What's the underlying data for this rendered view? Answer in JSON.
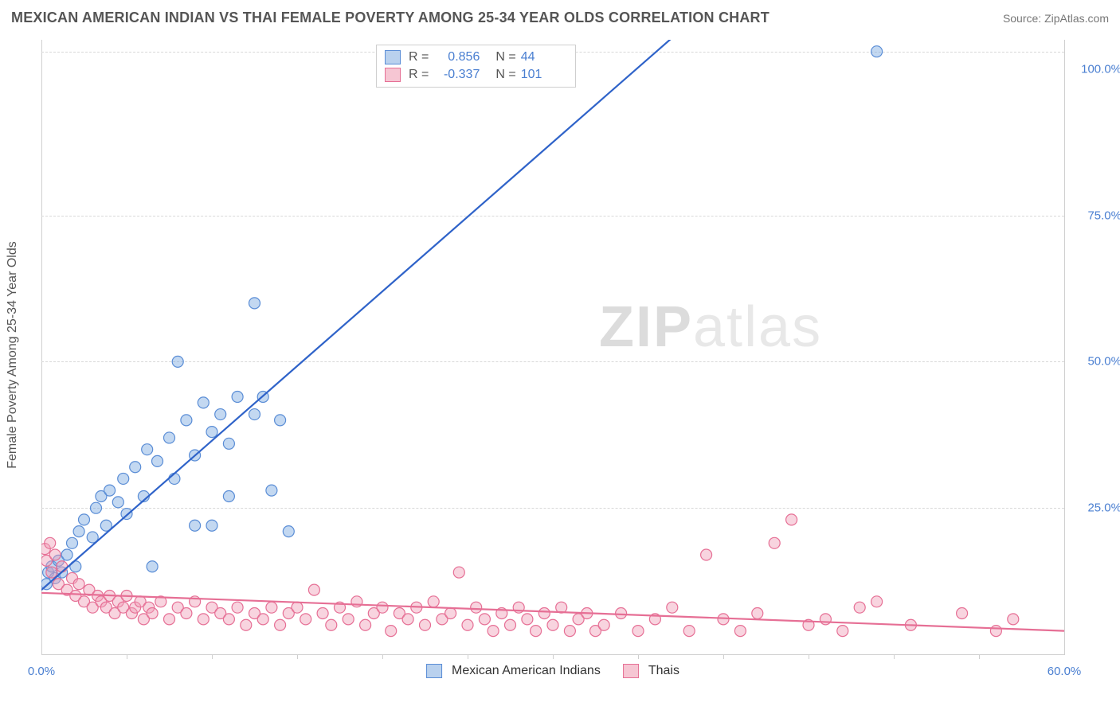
{
  "title": "MEXICAN AMERICAN INDIAN VS THAI FEMALE POVERTY AMONG 25-34 YEAR OLDS CORRELATION CHART",
  "source": "Source: ZipAtlas.com",
  "watermark_zip": "ZIP",
  "watermark_atlas": "atlas",
  "chart": {
    "type": "scatter",
    "xlim": [
      0,
      60
    ],
    "ylim": [
      0,
      105
    ],
    "x_ticks": [
      0,
      60
    ],
    "x_tick_labels": [
      "0.0%",
      "60.0%"
    ],
    "x_minor_ticks": [
      5,
      10,
      15,
      20,
      25,
      30,
      35,
      40,
      45,
      50,
      55
    ],
    "y_ticks": [
      25,
      50,
      75,
      100
    ],
    "y_tick_labels": [
      "25.0%",
      "50.0%",
      "75.0%",
      "100.0%"
    ],
    "y_grid": [
      25,
      50,
      75,
      103
    ],
    "y_label": "Female Poverty Among 25-34 Year Olds",
    "background_color": "#ffffff",
    "grid_color": "#d8d8d8",
    "axis_color": "#cfcfcf",
    "tick_label_color": "#4a7fd1",
    "marker_radius": 7,
    "line_width": 2.2,
    "legend_top": {
      "rows": [
        {
          "r_label": "R =",
          "r_value": "0.856",
          "n_label": "N =",
          "n_value": "44",
          "swatch_fill": "#b9d1ee",
          "swatch_stroke": "#5a8dd6"
        },
        {
          "r_label": "R =",
          "r_value": "-0.337",
          "n_label": "N =",
          "n_value": "101",
          "swatch_fill": "#f6c6d3",
          "swatch_stroke": "#e66f95"
        }
      ]
    },
    "legend_bottom": [
      {
        "label": "Mexican American Indians",
        "swatch_fill": "#b9d1ee",
        "swatch_stroke": "#5a8dd6"
      },
      {
        "label": "Thais",
        "swatch_fill": "#f6c6d3",
        "swatch_stroke": "#e66f95"
      }
    ],
    "series": [
      {
        "name": "Mexican American Indians",
        "marker_fill": "rgba(122,168,224,0.45)",
        "marker_stroke": "#5a8dd6",
        "line_color": "#2f63c9",
        "trend": {
          "x1": 0,
          "y1": 11,
          "x2": 40,
          "y2": 113
        },
        "points": [
          [
            0.3,
            12
          ],
          [
            0.4,
            14
          ],
          [
            0.6,
            15
          ],
          [
            0.8,
            13
          ],
          [
            1.0,
            16
          ],
          [
            1.2,
            14
          ],
          [
            1.5,
            17
          ],
          [
            1.8,
            19
          ],
          [
            2.0,
            15
          ],
          [
            2.2,
            21
          ],
          [
            2.5,
            23
          ],
          [
            3.0,
            20
          ],
          [
            3.2,
            25
          ],
          [
            3.5,
            27
          ],
          [
            3.8,
            22
          ],
          [
            4.0,
            28
          ],
          [
            4.5,
            26
          ],
          [
            4.8,
            30
          ],
          [
            5.0,
            24
          ],
          [
            5.5,
            32
          ],
          [
            6.0,
            27
          ],
          [
            6.2,
            35
          ],
          [
            6.8,
            33
          ],
          [
            7.5,
            37
          ],
          [
            7.8,
            30
          ],
          [
            8.5,
            40
          ],
          [
            9.0,
            34
          ],
          [
            9.5,
            43
          ],
          [
            10.0,
            38
          ],
          [
            10.5,
            41
          ],
          [
            11.0,
            36
          ],
          [
            11.5,
            44
          ],
          [
            12.5,
            41
          ],
          [
            13.0,
            44
          ],
          [
            14.0,
            40
          ],
          [
            8.0,
            50
          ],
          [
            12.5,
            60
          ],
          [
            11.0,
            27
          ],
          [
            10.0,
            22
          ],
          [
            6.5,
            15
          ],
          [
            9.0,
            22
          ],
          [
            13.5,
            28
          ],
          [
            14.5,
            21
          ],
          [
            49.0,
            103
          ]
        ]
      },
      {
        "name": "Thais",
        "marker_fill": "rgba(240,160,185,0.45)",
        "marker_stroke": "#e66f95",
        "line_color": "#e66f95",
        "trend": {
          "x1": 0,
          "y1": 10.5,
          "x2": 60,
          "y2": 4
        },
        "points": [
          [
            0.2,
            18
          ],
          [
            0.3,
            16
          ],
          [
            0.5,
            19
          ],
          [
            0.6,
            14
          ],
          [
            0.8,
            17
          ],
          [
            1.0,
            12
          ],
          [
            1.2,
            15
          ],
          [
            1.5,
            11
          ],
          [
            1.8,
            13
          ],
          [
            2.0,
            10
          ],
          [
            2.2,
            12
          ],
          [
            2.5,
            9
          ],
          [
            2.8,
            11
          ],
          [
            3.0,
            8
          ],
          [
            3.3,
            10
          ],
          [
            3.5,
            9
          ],
          [
            3.8,
            8
          ],
          [
            4.0,
            10
          ],
          [
            4.3,
            7
          ],
          [
            4.5,
            9
          ],
          [
            4.8,
            8
          ],
          [
            5.0,
            10
          ],
          [
            5.3,
            7
          ],
          [
            5.5,
            8
          ],
          [
            5.8,
            9
          ],
          [
            6.0,
            6
          ],
          [
            6.3,
            8
          ],
          [
            6.5,
            7
          ],
          [
            7.0,
            9
          ],
          [
            7.5,
            6
          ],
          [
            8.0,
            8
          ],
          [
            8.5,
            7
          ],
          [
            9.0,
            9
          ],
          [
            9.5,
            6
          ],
          [
            10.0,
            8
          ],
          [
            10.5,
            7
          ],
          [
            11.0,
            6
          ],
          [
            11.5,
            8
          ],
          [
            12.0,
            5
          ],
          [
            12.5,
            7
          ],
          [
            13.0,
            6
          ],
          [
            13.5,
            8
          ],
          [
            14.0,
            5
          ],
          [
            14.5,
            7
          ],
          [
            15.0,
            8
          ],
          [
            15.5,
            6
          ],
          [
            16.0,
            11
          ],
          [
            16.5,
            7
          ],
          [
            17.0,
            5
          ],
          [
            17.5,
            8
          ],
          [
            18.0,
            6
          ],
          [
            18.5,
            9
          ],
          [
            19.0,
            5
          ],
          [
            19.5,
            7
          ],
          [
            20.0,
            8
          ],
          [
            20.5,
            4
          ],
          [
            21.0,
            7
          ],
          [
            21.5,
            6
          ],
          [
            22.0,
            8
          ],
          [
            22.5,
            5
          ],
          [
            23.0,
            9
          ],
          [
            23.5,
            6
          ],
          [
            24.0,
            7
          ],
          [
            24.5,
            14
          ],
          [
            25.0,
            5
          ],
          [
            25.5,
            8
          ],
          [
            26.0,
            6
          ],
          [
            26.5,
            4
          ],
          [
            27.0,
            7
          ],
          [
            27.5,
            5
          ],
          [
            28.0,
            8
          ],
          [
            28.5,
            6
          ],
          [
            29.0,
            4
          ],
          [
            29.5,
            7
          ],
          [
            30.0,
            5
          ],
          [
            30.5,
            8
          ],
          [
            31.0,
            4
          ],
          [
            31.5,
            6
          ],
          [
            32.0,
            7
          ],
          [
            32.5,
            4
          ],
          [
            33.0,
            5
          ],
          [
            34.0,
            7
          ],
          [
            35.0,
            4
          ],
          [
            36.0,
            6
          ],
          [
            37.0,
            8
          ],
          [
            38.0,
            4
          ],
          [
            39.0,
            17
          ],
          [
            40.0,
            6
          ],
          [
            41.0,
            4
          ],
          [
            42.0,
            7
          ],
          [
            43.0,
            19
          ],
          [
            44.0,
            23
          ],
          [
            45.0,
            5
          ],
          [
            46.0,
            6
          ],
          [
            47.0,
            4
          ],
          [
            48.0,
            8
          ],
          [
            49.0,
            9
          ],
          [
            51.0,
            5
          ],
          [
            54.0,
            7
          ],
          [
            56.0,
            4
          ],
          [
            57.0,
            6
          ]
        ]
      }
    ]
  }
}
